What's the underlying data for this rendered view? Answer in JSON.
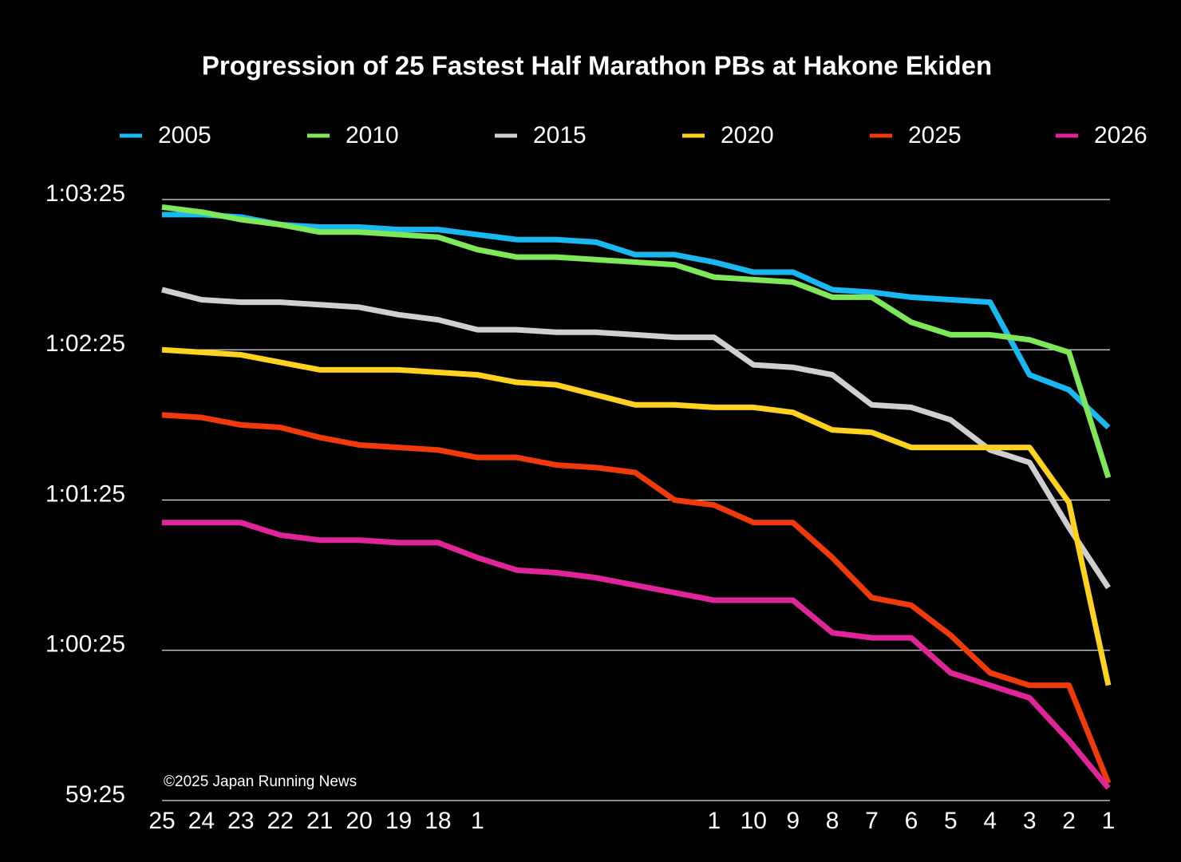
{
  "chart_data": {
    "type": "line",
    "title": "Progression of 25 Fastest Half Marathon PBs at Hakone Ekiden",
    "annotation": "©2025 Japan Running News",
    "categories": [
      "25",
      "24",
      "23",
      "22",
      "21",
      "20",
      "19",
      "18",
      "1",
      null,
      null,
      null,
      null,
      null,
      "1",
      "10",
      "9",
      "8",
      "7",
      "6",
      "5",
      "4",
      "3",
      "2",
      "1"
    ],
    "series": [
      {
        "name": "2005",
        "color": "#1ab8f0",
        "values": [
          3799,
          3799,
          3798,
          3795,
          3794,
          3794,
          3793,
          3793,
          3791,
          3789,
          3789,
          3788,
          3783,
          3783,
          3780,
          3776,
          3776,
          3769,
          3768,
          3766,
          3765,
          3764,
          3735,
          3729,
          3714
        ]
      },
      {
        "name": "2010",
        "color": "#7ee85a",
        "values": [
          3802,
          3800,
          3797,
          3795,
          3792,
          3792,
          3791,
          3790,
          3785,
          3782,
          3782,
          3781,
          3780,
          3779,
          3774,
          3773,
          3772,
          3766,
          3766,
          3756,
          3751,
          3751,
          3749,
          3744,
          3694
        ]
      },
      {
        "name": "2015",
        "color": "#cfcfcf",
        "values": [
          3769,
          3765,
          3764,
          3764,
          3763,
          3762,
          3759,
          3757,
          3753,
          3753,
          3752,
          3752,
          3751,
          3750,
          3750,
          3739,
          3738,
          3735,
          3723,
          3722,
          3717,
          3705,
          3700,
          3674,
          3650
        ]
      },
      {
        "name": "2020",
        "color": "#ffd21f",
        "values": [
          3745,
          3744,
          3743,
          3740,
          3737,
          3737,
          3737,
          3736,
          3735,
          3732,
          3731,
          3727,
          3723,
          3723,
          3722,
          3722,
          3720,
          3713,
          3712,
          3706,
          3706,
          3706,
          3706,
          3684,
          3611
        ]
      },
      {
        "name": "2025",
        "color": "#f03a0c",
        "values": [
          3719,
          3718,
          3715,
          3714,
          3710,
          3707,
          3706,
          3705,
          3702,
          3702,
          3699,
          3698,
          3696,
          3685,
          3683,
          3676,
          3676,
          3662,
          3646,
          3643,
          3631,
          3616,
          3611,
          3611,
          3572
        ]
      },
      {
        "name": "2026",
        "color": "#e0259a",
        "values": [
          3676,
          3676,
          3676,
          3671,
          3669,
          3669,
          3668,
          3668,
          3662,
          3657,
          3656,
          3654,
          3651,
          3648,
          3645,
          3645,
          3645,
          3632,
          3630,
          3630,
          3616,
          3611,
          3606,
          3589,
          3570
        ]
      }
    ],
    "ylim": [
      3565,
      3805
    ],
    "yticks": [
      {
        "value": 3805,
        "label": "1:03:25"
      },
      {
        "value": 3745,
        "label": "1:02:25"
      },
      {
        "value": 3685,
        "label": "1:01:25"
      },
      {
        "value": 3625,
        "label": "1:00:25"
      },
      {
        "value": 3565,
        "label": "59:25"
      }
    ],
    "grid": true
  }
}
